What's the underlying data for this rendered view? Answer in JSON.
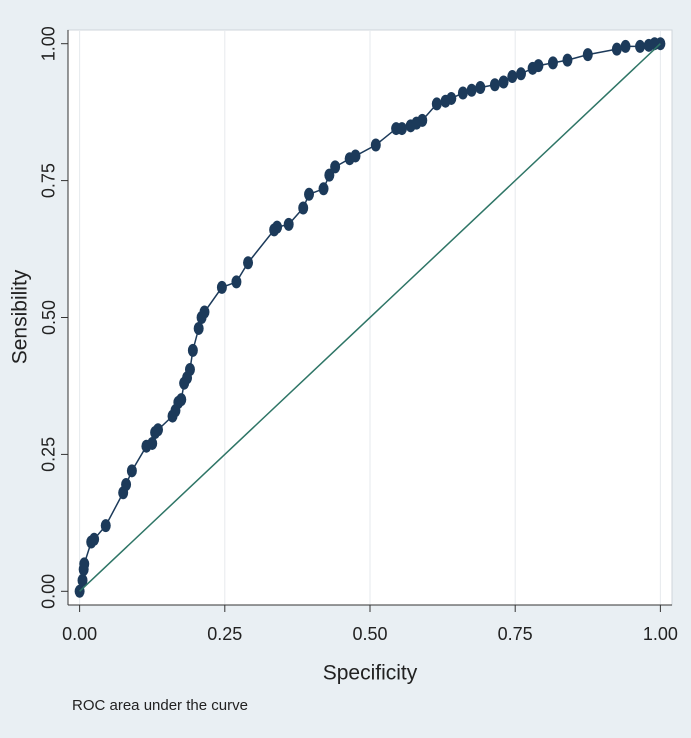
{
  "chart_data": {
    "type": "line",
    "xlabel": "Specificity",
    "ylabel": "Sensibility",
    "note": "ROC area under the curve",
    "xlim": [
      -0.02,
      1.02
    ],
    "ylim": [
      -0.025,
      1.025
    ],
    "xticks": [
      {
        "value": 0,
        "label": "0.00"
      },
      {
        "value": 0.25,
        "label": "0.25"
      },
      {
        "value": 0.5,
        "label": "0.50"
      },
      {
        "value": 0.75,
        "label": "0.75"
      },
      {
        "value": 1,
        "label": "1.00"
      }
    ],
    "yticks": [
      {
        "value": 0,
        "label": "0.00"
      },
      {
        "value": 0.25,
        "label": "0.25"
      },
      {
        "value": 0.5,
        "label": "0.50"
      },
      {
        "value": 0.75,
        "label": "0.75"
      },
      {
        "value": 1,
        "label": "1.00"
      }
    ],
    "grid": "x",
    "series": [
      {
        "color": "#1c3a5a",
        "markers": true,
        "x": [
          0,
          0.005,
          0.007,
          0.008,
          0.02,
          0.025,
          0.045,
          0.075,
          0.08,
          0.09,
          0.115,
          0.125,
          0.13,
          0.135,
          0.16,
          0.165,
          0.17,
          0.175,
          0.18,
          0.185,
          0.19,
          0.195,
          0.205,
          0.21,
          0.215,
          0.245,
          0.27,
          0.29,
          0.335,
          0.34,
          0.36,
          0.385,
          0.395,
          0.42,
          0.43,
          0.44,
          0.465,
          0.475,
          0.51,
          0.545,
          0.555,
          0.57,
          0.58,
          0.59,
          0.615,
          0.63,
          0.64,
          0.66,
          0.675,
          0.69,
          0.715,
          0.73,
          0.745,
          0.76,
          0.78,
          0.79,
          0.815,
          0.84,
          0.875,
          0.925,
          0.94,
          0.965,
          0.98,
          0.99,
          1
        ],
        "values": [
          0,
          0.02,
          0.04,
          0.05,
          0.09,
          0.095,
          0.12,
          0.18,
          0.195,
          0.22,
          0.265,
          0.27,
          0.29,
          0.295,
          0.32,
          0.33,
          0.345,
          0.35,
          0.38,
          0.39,
          0.405,
          0.44,
          0.48,
          0.5,
          0.51,
          0.555,
          0.565,
          0.6,
          0.66,
          0.665,
          0.67,
          0.7,
          0.725,
          0.735,
          0.76,
          0.775,
          0.79,
          0.795,
          0.815,
          0.845,
          0.845,
          0.85,
          0.855,
          0.86,
          0.89,
          0.895,
          0.9,
          0.91,
          0.915,
          0.92,
          0.925,
          0.93,
          0.94,
          0.945,
          0.955,
          0.96,
          0.965,
          0.97,
          0.98,
          0.99,
          0.995,
          0.995,
          0.997,
          1,
          1
        ]
      },
      {
        "color": "#2e7566",
        "markers": false,
        "x": [
          0,
          1
        ],
        "values": [
          0,
          1
        ]
      }
    ]
  }
}
